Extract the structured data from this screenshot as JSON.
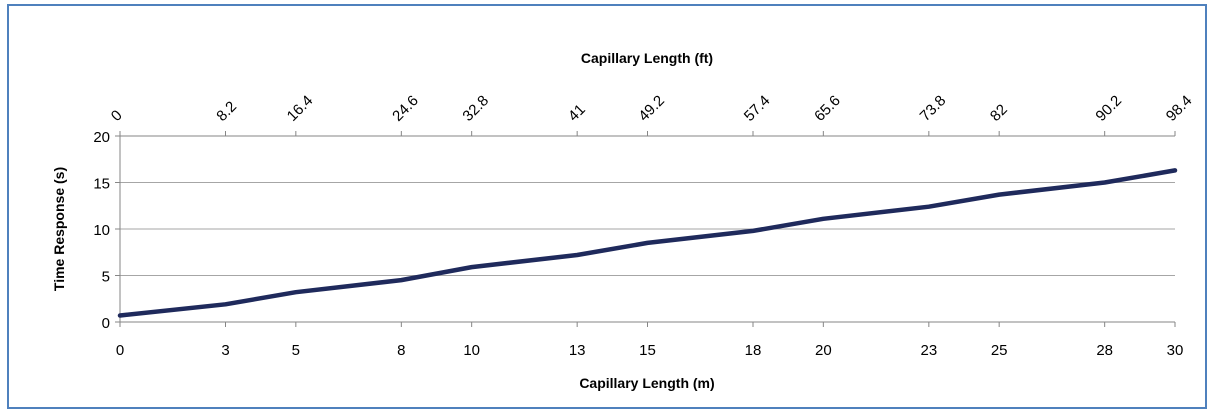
{
  "chart_data": {
    "type": "line",
    "title": "",
    "xlabel": "Capillary Length (m)",
    "x2label": "Capillary Length (ft)",
    "ylabel": "Time Response (s)",
    "xlim": [
      0,
      30
    ],
    "ylim": [
      0,
      20
    ],
    "x_ticks": [
      0,
      3,
      5,
      8,
      10,
      13,
      15,
      18,
      20,
      23,
      25,
      28,
      30
    ],
    "x2_ticks": [
      "0",
      "8.2",
      "16.4",
      "24.6",
      "32.8",
      "41",
      "49.2",
      "57.4",
      "65.6",
      "73.8",
      "82",
      "90.2",
      "98.4"
    ],
    "y_ticks": [
      0,
      5,
      10,
      15,
      20
    ],
    "grid": "horizontal",
    "line_color": "#1f2a5c",
    "series": [
      {
        "x": [
          0,
          3,
          5,
          8,
          10,
          13,
          15,
          18,
          20,
          23,
          25,
          28,
          30
        ],
        "values": [
          0.7,
          1.9,
          3.2,
          4.5,
          5.9,
          7.2,
          8.5,
          9.8,
          11.1,
          12.4,
          13.7,
          15.0,
          16.3
        ]
      }
    ]
  }
}
